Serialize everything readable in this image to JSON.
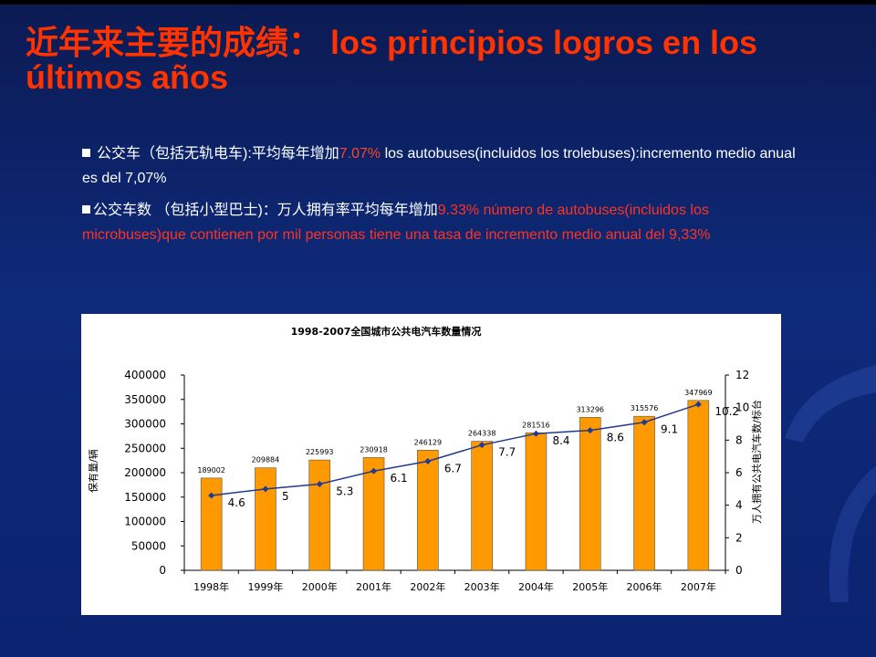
{
  "slide": {
    "title": "近年来主要的成绩： los principios logros en los últimos años",
    "bullet1": {
      "cn": "公交车（包括无轨电车):平均每年增加",
      "pct": "7.07%",
      "es": " los autobuses(incluidos los trolebuses):incremento medio anual es del 7,07%"
    },
    "bullet2": {
      "cn": "公交车数 （包括小型巴士)：万人拥有率平均每年增加",
      "rest": "9.33%  número de autobuses(incluidos los microbuses)que contienen por mil personas tiene una tasa de incremento medio anual del 9,33%"
    }
  },
  "colors": {
    "title": "#ff3300",
    "bar": "#ff9900",
    "line": "#1f3a93",
    "background": "#0e2a7a"
  },
  "chart_data": {
    "type": "bar",
    "title": "1998-2007全国城市公共电汽车数量情况",
    "categories": [
      "1998年",
      "1999年",
      "2000年",
      "2001年",
      "2002年",
      "2003年",
      "2004年",
      "2005年",
      "2006年",
      "2007年"
    ],
    "ylabel": "保有量/辆",
    "y2label": "万人拥有公共电汽车数/标台",
    "ylim": [
      0,
      400000
    ],
    "y2lim": [
      0,
      12
    ],
    "yticks": [
      "0",
      "50000",
      "100000",
      "150000",
      "200000",
      "250000",
      "300000",
      "350000",
      "400000"
    ],
    "y2ticks": [
      "0",
      "2",
      "4",
      "6",
      "8",
      "10",
      "12"
    ],
    "series": [
      {
        "type": "bar",
        "values": [
          189002,
          209884,
          225993,
          230918,
          246129,
          264338,
          281516,
          313296,
          315576,
          347969
        ]
      },
      {
        "type": "line",
        "axis": "right",
        "values": [
          4.6,
          5,
          5.3,
          6.1,
          6.7,
          7.7,
          8.4,
          8.6,
          9.1,
          10.2
        ]
      }
    ],
    "grid": false,
    "legend": "none"
  }
}
